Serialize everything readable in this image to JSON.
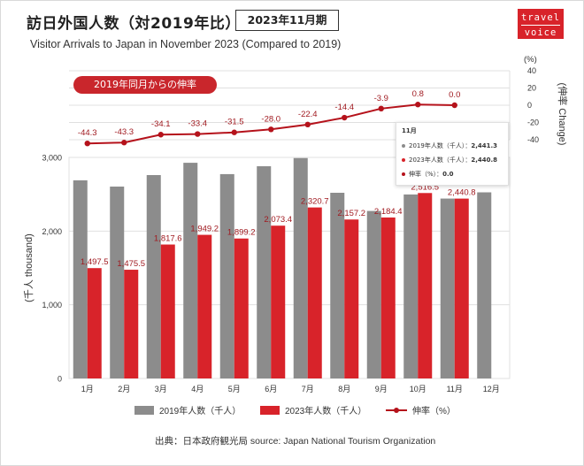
{
  "header": {
    "title": "訪日外国人数（対2019年比）",
    "period": "2023年11月期",
    "subtitle": "Visitor Arrivals to Japan in November 2023 (Compared to 2019)",
    "logo_line1": "travel",
    "logo_line2": "voice"
  },
  "growth_badge": "2019年同月からの伸率",
  "tooltip": {
    "title": "11月",
    "rows": [
      {
        "label": "2019年人数（千人）：",
        "value": "2,441.3",
        "color": "#8c8c8c"
      },
      {
        "label": "2023年人数（千人）：",
        "value": "2,440.8",
        "color": "#d8232a"
      },
      {
        "label": "伸率（%）：",
        "value": "0.0",
        "color": "#b5121b"
      }
    ]
  },
  "source": "出典：日本政府観光局 source: Japan National Tourism Organization",
  "colors": {
    "bar2019": "#8c8c8c",
    "bar2023": "#d8232a",
    "line": "#b5121b",
    "grid": "#e0e0e0"
  },
  "chart_data": [
    {
      "type": "bar",
      "categories": [
        "1月",
        "2月",
        "3月",
        "4月",
        "5月",
        "6月",
        "7月",
        "8月",
        "9月",
        "10月",
        "11月",
        "12月"
      ],
      "ylabel": "千人 thousand",
      "ylim": [
        0,
        3000
      ],
      "yticks": [
        "0",
        "1,000",
        "2,000",
        "3,000"
      ],
      "series": [
        {
          "name": "2019年人数（千人）",
          "values": [
            2689,
            2604,
            2760,
            2927,
            2773,
            2880,
            2991,
            2520,
            2273,
            2497,
            2441.3,
            2526
          ]
        },
        {
          "name": "2023年人数（千人）",
          "values": [
            1497.5,
            1475.5,
            1817.6,
            1949.2,
            1899.2,
            2073.4,
            2320.7,
            2157.2,
            2184.4,
            2516.5,
            2440.8,
            null
          ],
          "labels": [
            "1,497.5",
            "1,475.5",
            "1,817.6",
            "1,949.2",
            "1,899.2",
            "2,073.4",
            "2,320.7",
            "2,157.2",
            "2,184.4",
            "2,516.5",
            "2,440.8",
            ""
          ]
        }
      ],
      "legend": "bottom"
    },
    {
      "type": "line",
      "categories": [
        "1月",
        "2月",
        "3月",
        "4月",
        "5月",
        "6月",
        "7月",
        "8月",
        "9月",
        "10月",
        "11月"
      ],
      "ylabel": "(%)",
      "ylabel_right": "伸率 Change",
      "ylim": [
        -40,
        40
      ],
      "yticks": [
        "40",
        "20",
        "0",
        "-20",
        "-40"
      ],
      "series": [
        {
          "name": "伸率（%）",
          "values": [
            -44.3,
            -43.3,
            -34.1,
            -33.4,
            -31.5,
            -28.0,
            -22.4,
            -14.4,
            -3.9,
            0.8,
            0.0
          ],
          "labels": [
            "-44.3",
            "-43.3",
            "-34.1",
            "-33.4",
            "-31.5",
            "-28.0",
            "-22.4",
            "-14.4",
            "-3.9",
            "0.8",
            "0.0"
          ]
        }
      ]
    }
  ]
}
